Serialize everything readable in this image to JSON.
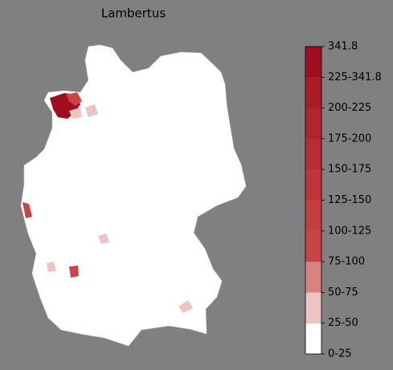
{
  "title": "Lambertus",
  "colorbar": {
    "labels": [
      "0-25",
      "25-50",
      "50-75",
      "75-100",
      "100-125",
      "125-150",
      "150-175",
      "175-200",
      "200-225",
      "225-341.8",
      "341.8"
    ],
    "colors": [
      "#ffffff",
      "#efc3c3",
      "#d98282",
      "#c94545",
      "#c43e40",
      "#bf3539",
      "#b92c34",
      "#b2232e",
      "#aa1a28",
      "#a00d20"
    ]
  }
}
